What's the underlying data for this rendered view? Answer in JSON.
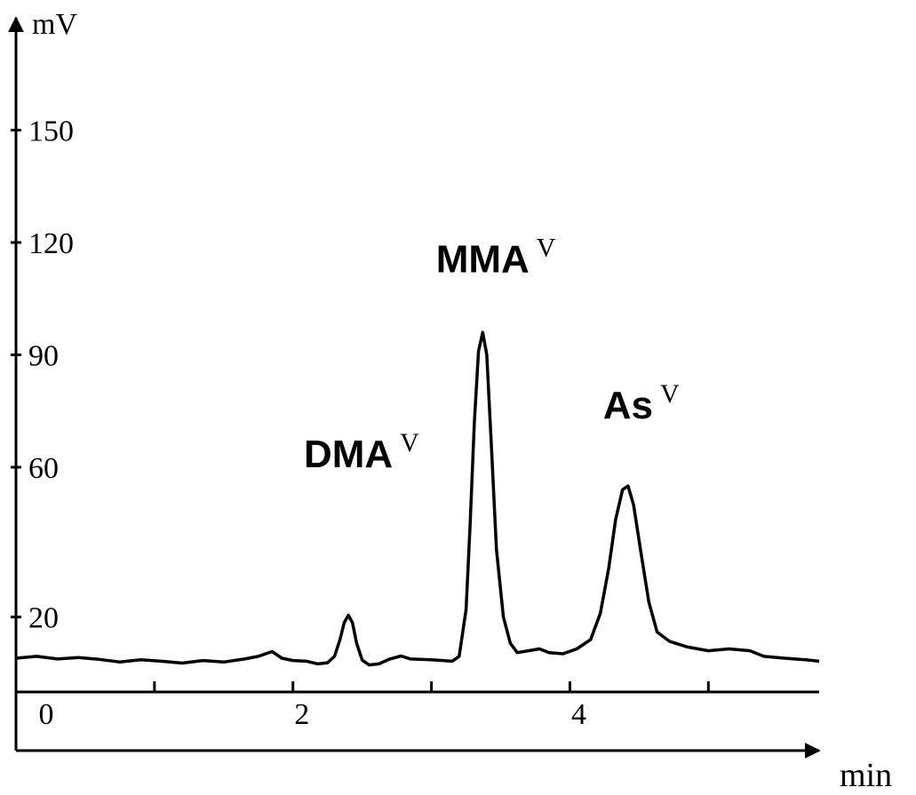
{
  "chart_data": {
    "type": "line",
    "title": "",
    "xlabel": "min",
    "ylabel": "mV",
    "xlim": [
      0,
      5.8
    ],
    "ylim": [
      0,
      180
    ],
    "grid": false,
    "x_ticks": [
      {
        "value": 0,
        "label": "0"
      },
      {
        "value": 1,
        "label": ""
      },
      {
        "value": 2,
        "label": "2"
      },
      {
        "value": 3,
        "label": ""
      },
      {
        "value": 4,
        "label": "4"
      },
      {
        "value": 5,
        "label": ""
      }
    ],
    "y_ticks": [
      {
        "value": 20,
        "label": "20"
      },
      {
        "value": 60,
        "label": "60"
      },
      {
        "value": 90,
        "label": "90"
      },
      {
        "value": 120,
        "label": "120"
      },
      {
        "value": 150,
        "label": "150"
      }
    ],
    "series": [
      {
        "color": "#000000",
        "points": [
          [
            0.0,
            9.0
          ],
          [
            0.15,
            9.5
          ],
          [
            0.3,
            8.8
          ],
          [
            0.45,
            9.2
          ],
          [
            0.6,
            8.7
          ],
          [
            0.75,
            8.0
          ],
          [
            0.9,
            8.6
          ],
          [
            1.05,
            8.2
          ],
          [
            1.2,
            7.7
          ],
          [
            1.35,
            8.4
          ],
          [
            1.5,
            8.0
          ],
          [
            1.65,
            8.8
          ],
          [
            1.75,
            9.5
          ],
          [
            1.85,
            10.8
          ],
          [
            1.92,
            9.0
          ],
          [
            2.0,
            8.4
          ],
          [
            2.1,
            8.2
          ],
          [
            2.18,
            7.5
          ],
          [
            2.25,
            7.8
          ],
          [
            2.3,
            9.5
          ],
          [
            2.34,
            14.0
          ],
          [
            2.37,
            18.5
          ],
          [
            2.4,
            20.5
          ],
          [
            2.43,
            18.5
          ],
          [
            2.46,
            13.0
          ],
          [
            2.5,
            8.5
          ],
          [
            2.55,
            7.2
          ],
          [
            2.62,
            7.5
          ],
          [
            2.7,
            8.8
          ],
          [
            2.78,
            9.6
          ],
          [
            2.85,
            8.8
          ],
          [
            3.0,
            8.6
          ],
          [
            3.15,
            8.2
          ],
          [
            3.2,
            9.5
          ],
          [
            3.25,
            22.0
          ],
          [
            3.28,
            45.0
          ],
          [
            3.31,
            72.0
          ],
          [
            3.34,
            91.0
          ],
          [
            3.37,
            96.0
          ],
          [
            3.4,
            90.0
          ],
          [
            3.43,
            68.0
          ],
          [
            3.47,
            38.0
          ],
          [
            3.52,
            20.0
          ],
          [
            3.57,
            13.0
          ],
          [
            3.62,
            10.5
          ],
          [
            3.7,
            11.0
          ],
          [
            3.78,
            11.5
          ],
          [
            3.85,
            10.5
          ],
          [
            3.95,
            10.2
          ],
          [
            4.05,
            11.5
          ],
          [
            4.15,
            14.0
          ],
          [
            4.22,
            21.0
          ],
          [
            4.28,
            33.0
          ],
          [
            4.33,
            46.0
          ],
          [
            4.38,
            54.0
          ],
          [
            4.42,
            55.0
          ],
          [
            4.46,
            50.0
          ],
          [
            4.51,
            38.0
          ],
          [
            4.57,
            24.0
          ],
          [
            4.63,
            16.0
          ],
          [
            4.72,
            13.5
          ],
          [
            4.85,
            12.0
          ],
          [
            5.0,
            11.0
          ],
          [
            5.15,
            11.5
          ],
          [
            5.3,
            11.0
          ],
          [
            5.4,
            9.5
          ],
          [
            5.55,
            9.0
          ],
          [
            5.7,
            8.6
          ],
          [
            5.8,
            8.2
          ]
        ]
      }
    ],
    "annotations": [
      {
        "text": "DMA",
        "sup": "V",
        "x": 2.4,
        "y": 60
      },
      {
        "text": "MMA",
        "sup": "V",
        "x": 3.37,
        "y": 112
      },
      {
        "text": "As",
        "sup": "V",
        "x": 4.42,
        "y": 73
      }
    ]
  }
}
